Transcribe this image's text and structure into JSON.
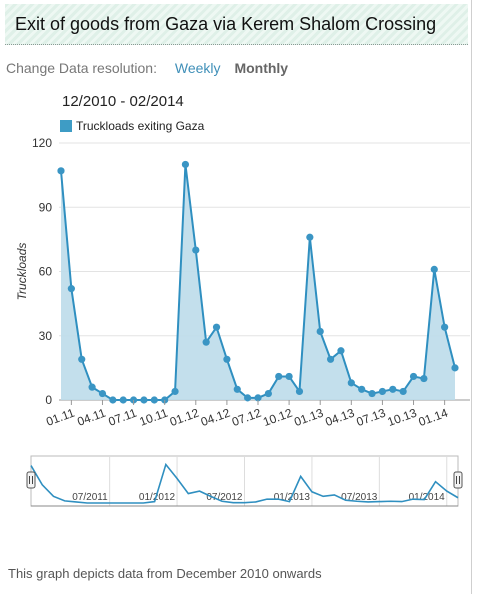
{
  "title": "Exit of goods from Gaza via Kerem Shalom Crossing",
  "resolution": {
    "label": "Change Data resolution:",
    "weekly": "Weekly",
    "monthly": "Monthly"
  },
  "date_range": "12/2010 - 02/2014",
  "footer": "This graph depicts data from December 2010 onwards",
  "colors": {
    "line": "#2f8fc0",
    "fill": "#bcdcea",
    "point": "#3a95c4"
  },
  "navigator": {
    "labels": [
      "07/2011",
      "01/2012",
      "07/2012",
      "01/2013",
      "07/2013",
      "01/2014"
    ],
    "handle_icon": "grip-icon"
  },
  "chart_data": {
    "type": "area",
    "ylabel": "Truckloads",
    "ylim": [
      0,
      120
    ],
    "yticks": [
      0,
      30,
      60,
      90,
      120
    ],
    "grid": true,
    "legend_position": "top-left",
    "xtick_labels": [
      "01.11",
      "04.11",
      "07.11",
      "10.11",
      "01.12",
      "04.12",
      "07.12",
      "10.12",
      "01.13",
      "04.13",
      "07.13",
      "10.13",
      "01.14"
    ],
    "series": [
      {
        "name": "Truckloads exiting Gaza",
        "x": [
          "12/2010",
          "01/2011",
          "02/2011",
          "03/2011",
          "04/2011",
          "05/2011",
          "06/2011",
          "07/2011",
          "08/2011",
          "09/2011",
          "10/2011",
          "11/2011",
          "12/2011",
          "01/2012",
          "02/2012",
          "03/2012",
          "04/2012",
          "05/2012",
          "06/2012",
          "07/2012",
          "08/2012",
          "09/2012",
          "10/2012",
          "11/2012",
          "12/2012",
          "01/2013",
          "02/2013",
          "03/2013",
          "04/2013",
          "05/2013",
          "06/2013",
          "07/2013",
          "08/2013",
          "09/2013",
          "10/2013",
          "11/2013",
          "12/2013",
          "01/2014",
          "02/2014"
        ],
        "values": [
          107,
          52,
          19,
          6,
          3,
          0,
          0,
          0,
          0,
          0,
          0,
          4,
          110,
          70,
          27,
          34,
          19,
          5,
          1,
          1,
          3,
          11,
          11,
          4,
          76,
          32,
          19,
          23,
          8,
          5,
          3,
          4,
          5,
          4,
          11,
          10,
          61,
          34,
          15
        ]
      }
    ]
  }
}
